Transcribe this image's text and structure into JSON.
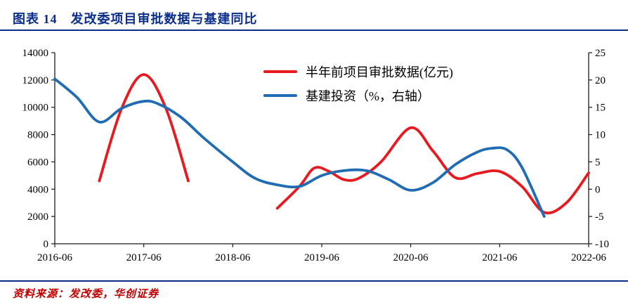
{
  "header": {
    "title": "图表 14　发改委项目审批数据与基建同比"
  },
  "footer": {
    "source": "资料来源：发改委，华创证券"
  },
  "colors": {
    "heading_blue": "#0B2E8C",
    "source_red": "#C00000",
    "axis_black": "#1a1a1a",
    "series_red": "#E8191F",
    "series_blue": "#1F6CB5"
  },
  "chart_data": {
    "type": "line",
    "title": "发改委项目审批数据与基建同比",
    "x_unit": "months since 2016-06",
    "x_range": [
      0,
      72
    ],
    "x_ticks": [
      {
        "label": "2016-06",
        "m": 0
      },
      {
        "label": "2017-06",
        "m": 12
      },
      {
        "label": "2018-06",
        "m": 24
      },
      {
        "label": "2019-06",
        "m": 36
      },
      {
        "label": "2020-06",
        "m": 48
      },
      {
        "label": "2021-06",
        "m": 60
      },
      {
        "label": "2022-06",
        "m": 72
      }
    ],
    "y_left": {
      "min": 0,
      "max": 14000,
      "tick_labels": [
        "0",
        "2000",
        "4000",
        "6000",
        "8000",
        "10000",
        "12000",
        "14000"
      ]
    },
    "y_right": {
      "min": -10,
      "max": 25,
      "tick_labels": [
        "-10",
        "-5",
        "0",
        "5",
        "10",
        "15",
        "20",
        "25"
      ]
    },
    "legend_position": "top-center",
    "grid": false,
    "series": [
      {
        "name": "半年前项目审批数据(亿元)",
        "axis": "left",
        "color": "#E8191F",
        "segments": [
          [
            [
              6,
              4600
            ],
            [
              9,
              9900
            ],
            [
              12,
              12400
            ],
            [
              15,
              9900
            ],
            [
              18,
              4600
            ]
          ],
          [
            [
              30,
              2600
            ],
            [
              33,
              4200
            ],
            [
              35,
              5550
            ],
            [
              37,
              5300
            ],
            [
              39,
              4700
            ],
            [
              41,
              4800
            ],
            [
              44,
              6000
            ],
            [
              48,
              8500
            ],
            [
              51,
              6800
            ],
            [
              54,
              4850
            ],
            [
              57,
              5150
            ],
            [
              60,
              5300
            ],
            [
              63,
              4200
            ],
            [
              66,
              2300
            ],
            [
              69,
              3000
            ],
            [
              72,
              5200
            ]
          ]
        ]
      },
      {
        "name": "基建投资（%，右轴）",
        "axis": "right",
        "color": "#1F6CB5",
        "segments": [
          [
            [
              0,
              20.2
            ],
            [
              3,
              16.8
            ],
            [
              6,
              12.3
            ],
            [
              9,
              14.8
            ],
            [
              12,
              16.1
            ],
            [
              14,
              15.6
            ],
            [
              17,
              13.2
            ],
            [
              20,
              9.5
            ],
            [
              24,
              5.0
            ],
            [
              27,
              2.0
            ],
            [
              30,
              0.8
            ],
            [
              33,
              0.5
            ],
            [
              36,
              2.5
            ],
            [
              39,
              3.4
            ],
            [
              42,
              3.4
            ],
            [
              45,
              1.8
            ],
            [
              48,
              -0.2
            ],
            [
              51,
              1.2
            ],
            [
              54,
              4.5
            ],
            [
              57,
              6.8
            ],
            [
              59,
              7.5
            ],
            [
              61,
              7.2
            ],
            [
              63,
              4.0
            ],
            [
              66,
              -5.0
            ]
          ]
        ]
      }
    ]
  }
}
